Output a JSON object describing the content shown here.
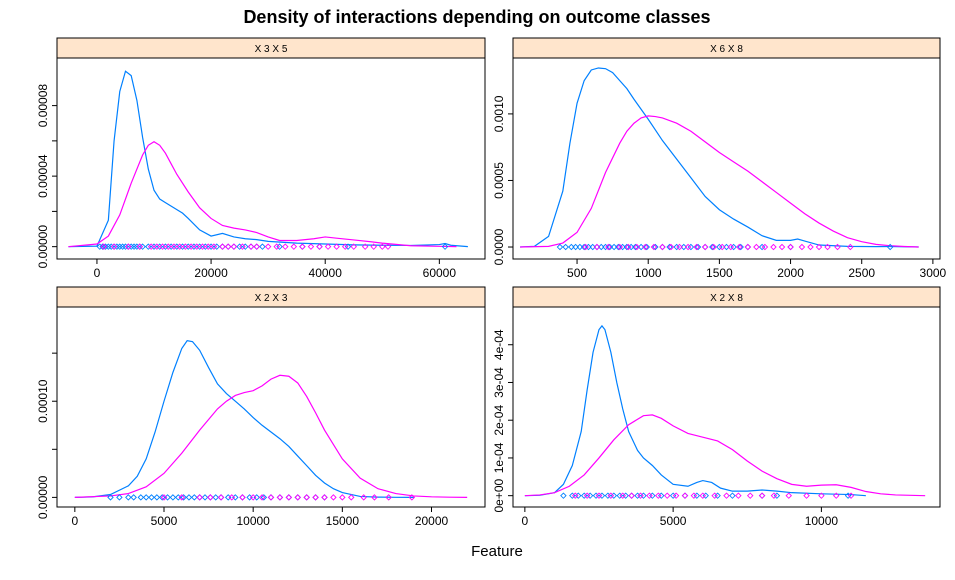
{
  "colors": {
    "strip_bg": "#ffe5cc",
    "series_1": "#0080ff",
    "series_2": "#ff00ff",
    "frame": "#000000"
  },
  "chart_data": {
    "type": "line",
    "title": "Density of interactions depending on outcome classes",
    "xlabel": "Feature",
    "ylabel": "",
    "layout": "2x2 lattice",
    "grid": false,
    "legend": "none",
    "series_names": [],
    "panels": [
      {
        "strip": "X 3 X 5",
        "xlim": [
          -7000,
          68000
        ],
        "ylim": [
          -7e-06,
          0.000107
        ],
        "x_ticks": [
          0,
          20000,
          40000,
          60000
        ],
        "x_tick_labels": [
          "0",
          "20000",
          "40000",
          "60000"
        ],
        "y_ticks": [
          0,
          4e-05,
          8e-05
        ],
        "y_tick_labels": [
          "0.00000",
          "0.00004",
          "0.00008"
        ],
        "y_minor_ticks": [
          2e-05,
          6e-05
        ],
        "x_ticks_side": "bottom",
        "y_ticks_side": "left",
        "series": [
          {
            "x": [
              -5000,
              0,
              2000,
              3000,
              4000,
              5000,
              6000,
              7000,
              8000,
              9000,
              10000,
              11000,
              12000,
              13000,
              14000,
              15000,
              16000,
              18000,
              20000,
              22000,
              24000,
              26000,
              28000,
              30000,
              35000,
              40000,
              45000,
              50000,
              55000,
              60000,
              61000,
              62000,
              65000
            ],
            "y": [
              0,
              3e-07,
              1.5e-05,
              6e-05,
              8.8e-05,
              9.95e-05,
              9.7e-05,
              8.3e-05,
              6.2e-05,
              4.4e-05,
              3.2e-05,
              2.7e-05,
              2.5e-05,
              2.3e-05,
              2.1e-05,
              1.9e-05,
              1.6e-05,
              9.5e-06,
              6e-06,
              7.5e-06,
              5.5e-06,
              4.5e-06,
              4e-06,
              3e-06,
              2e-06,
              1.5e-06,
              1e-06,
              8e-07,
              7e-07,
              1.2e-06,
              1.8e-06,
              8e-07,
              0
            ]
          },
          {
            "x": [
              -5000,
              0,
              2000,
              4000,
              6000,
              8000,
              9000,
              10000,
              11000,
              12000,
              13000,
              14000,
              16000,
              18000,
              20000,
              22000,
              24000,
              26000,
              28000,
              30000,
              32000,
              35000,
              38000,
              40000,
              42000,
              45000,
              48000,
              50000,
              55000,
              60000,
              63000
            ],
            "y": [
              0,
              1.5e-06,
              6e-06,
              1.8e-05,
              3.6e-05,
              5.2e-05,
              5.75e-05,
              5.95e-05,
              5.75e-05,
              5.3e-05,
              4.7e-05,
              4.1e-05,
              3.1e-05,
              2.2e-05,
              1.6e-05,
              1.2e-05,
              1.05e-05,
              9.5e-06,
              8e-06,
              5.5e-06,
              3.5e-06,
              3.5e-06,
              4.5e-06,
              5.5e-06,
              4.8e-06,
              3.8e-06,
              2.8e-06,
              2e-06,
              5e-07,
              2e-07,
              0
            ]
          }
        ],
        "rug": [
          [
            500,
            1000,
            1500,
            2000,
            2500,
            3000,
            3500,
            4000,
            4500,
            5000,
            5500,
            6000,
            6500,
            7000,
            7500,
            8000,
            9000,
            10000,
            11000,
            12000,
            13000,
            14000,
            15000,
            16000,
            17000,
            18000,
            19000,
            20000,
            21000,
            22000,
            23000,
            24000,
            25000,
            26000,
            27000,
            28000,
            29000,
            32000,
            36000,
            39000,
            44000,
            61000
          ],
          [
            1200,
            3000,
            5500,
            7500,
            9500,
            10500,
            11500,
            12500,
            13500,
            14500,
            15500,
            16500,
            17500,
            18500,
            19500,
            20500,
            22000,
            23000,
            24000,
            25500,
            27000,
            28000,
            30000,
            31500,
            33000,
            34500,
            36000,
            37500,
            39000,
            40500,
            42000,
            43500,
            45000,
            47000,
            48500,
            50000,
            51000
          ]
        ]
      },
      {
        "strip": "X 6 X 8",
        "xlim": [
          50,
          3050
        ],
        "ylim": [
          -9e-05,
          0.00142
        ],
        "x_ticks": [
          500,
          1000,
          1500,
          2000,
          2500,
          3000
        ],
        "x_tick_labels": [
          "500",
          "1000",
          "1500",
          "2000",
          "2500",
          "3000"
        ],
        "y_ticks": [
          0,
          0.0005,
          0.001
        ],
        "y_tick_labels": [
          "0.0000",
          "0.0005",
          "0.0010"
        ],
        "y_minor_ticks": [],
        "x_ticks_side": "bottom",
        "y_ticks_side": "left",
        "series": [
          {
            "x": [
              100,
              200,
              300,
              400,
              450,
              500,
              550,
              600,
              650,
              700,
              750,
              800,
              850,
              900,
              1000,
              1100,
              1200,
              1300,
              1400,
              1500,
              1600,
              1700,
              1800,
              1900,
              2000,
              2050,
              2100,
              2200,
              2400,
              2600,
              2700,
              2800,
              2900
            ],
            "y": [
              0,
              5e-06,
              8e-05,
              0.00042,
              0.00078,
              0.00108,
              0.00125,
              0.00133,
              0.001345,
              0.00134,
              0.00131,
              0.00125,
              0.00119,
              0.00111,
              0.00096,
              0.0008,
              0.00066,
              0.00052,
              0.00038,
              0.00028,
              0.00021,
              0.00015,
              8.5e-05,
              5e-05,
              5e-05,
              6e-05,
              4.5e-05,
              1.5e-05,
              5e-06,
              3e-06,
              4e-06,
              2e-06,
              0
            ]
          },
          {
            "x": [
              100,
              300,
              400,
              500,
              600,
              700,
              800,
              850,
              900,
              950,
              1000,
              1050,
              1100,
              1200,
              1300,
              1400,
              1500,
              1600,
              1700,
              1800,
              1900,
              2000,
              2100,
              2200,
              2300,
              2400,
              2500,
              2600,
              2700,
              2800,
              2900
            ],
            "y": [
              0,
              5e-06,
              3e-05,
              0.00011,
              0.00029,
              0.00056,
              0.00078,
              0.00087,
              0.00093,
              0.00097,
              0.000985,
              0.00098,
              0.00097,
              0.00093,
              0.00087,
              0.00079,
              0.00071,
              0.00064,
              0.00057,
              0.00049,
              0.00041,
              0.00033,
              0.00025,
              0.00018,
              0.00012,
              7e-05,
              4e-05,
              2e-05,
              1e-05,
              4e-06,
              0
            ]
          }
        ],
        "rug": [
          [
            380,
            420,
            460,
            490,
            520,
            550,
            580,
            610,
            640,
            670,
            700,
            730,
            760,
            790,
            820,
            850,
            880,
            910,
            950,
            990,
            1050,
            1100,
            1150,
            1200,
            1250,
            1300,
            1350,
            1400,
            1450,
            1500,
            1550,
            1600,
            1650,
            1700,
            1800,
            2000,
            2700
          ],
          [
            560,
            640,
            720,
            800,
            860,
            920,
            980,
            1040,
            1100,
            1160,
            1220,
            1280,
            1340,
            1400,
            1460,
            1520,
            1580,
            1640,
            1700,
            1760,
            1820,
            1880,
            1940,
            2000,
            2080,
            2140,
            2200,
            2260,
            2330,
            2420
          ]
        ]
      },
      {
        "strip": "X 2 X 3",
        "xlim": [
          -1000,
          23000
        ],
        "ylim": [
          -1e-05,
          0.000198
        ],
        "x_ticks": [
          0,
          5000,
          10000,
          15000,
          20000
        ],
        "x_tick_labels": [
          "0",
          "5000",
          "10000",
          "15000",
          "20000"
        ],
        "y_ticks": [
          0,
          0.0001
        ],
        "y_tick_labels": [
          "0.00000",
          "0.00010"
        ],
        "y_minor_ticks": [
          5e-05,
          0.00015
        ],
        "x_ticks_side": "bottom",
        "y_ticks_side": "left",
        "series": [
          {
            "x": [
              0,
              1000,
              2000,
              3000,
              3500,
              4000,
              4500,
              5000,
              5500,
              6000,
              6300,
              6600,
              7000,
              7500,
              8000,
              8500,
              9000,
              9500,
              10000,
              10500,
              11000,
              11500,
              12000,
              12500,
              13000,
              13500,
              14000,
              14500,
              15000,
              16000,
              17000,
              18000,
              19000
            ],
            "y": [
              0,
              5e-07,
              3e-06,
              1.2e-05,
              2.2e-05,
              4e-05,
              6.8e-05,
              0.0001,
              0.00013,
              0.000155,
              0.000163,
              0.000162,
              0.000153,
              0.000135,
              0.000118,
              0.000108,
              0.0001,
              9.2e-05,
              8.3e-05,
              7.5e-05,
              6.8e-05,
              6.1e-05,
              5.3e-05,
              4.3e-05,
              3.3e-05,
              2.3e-05,
              1.5e-05,
              9e-06,
              5e-06,
              1e-06,
              3e-07,
              1e-07,
              0
            ]
          },
          {
            "x": [
              0,
              2000,
              3000,
              4000,
              5000,
              6000,
              7000,
              8000,
              8500,
              9000,
              9500,
              10000,
              10500,
              11000,
              11500,
              12000,
              12500,
              13000,
              13500,
              14000,
              15000,
              16000,
              17000,
              18000,
              19000,
              20000,
              21000,
              22000
            ],
            "y": [
              0,
              1.5e-06,
              4e-06,
              1.1e-05,
              2.5e-05,
              4.6e-05,
              7e-05,
              9.2e-05,
              0.0001,
              0.000106,
              0.000109,
              0.000111,
              0.000116,
              0.000123,
              0.000127,
              0.000126,
              0.000119,
              0.000105,
              8.8e-05,
              7e-05,
              4e-05,
              2e-05,
              9e-06,
              4e-06,
              1.5e-06,
              6e-07,
              2e-07,
              0
            ]
          }
        ],
        "rug": [
          [
            2000,
            2500,
            3000,
            3300,
            3700,
            4000,
            4300,
            4600,
            4900,
            5200,
            5500,
            5800,
            6100,
            6400,
            6700,
            7000,
            7300,
            7600,
            7900,
            8200,
            8600,
            9000,
            9400,
            9800,
            10200,
            10600,
            11000,
            11500,
            12000,
            12500,
            13000,
            13500,
            14000
          ],
          [
            5000,
            6000,
            7000,
            7600,
            8200,
            8800,
            9400,
            10000,
            10500,
            11000,
            11500,
            12000,
            12500,
            13000,
            13500,
            14000,
            14500,
            15000,
            15500,
            16200,
            16800,
            17600,
            18900
          ]
        ]
      },
      {
        "strip": "X 2 X 8",
        "xlim": [
          -400,
          14000
        ],
        "ylim": [
          -3e-05,
          0.0005
        ],
        "x_ticks": [
          0,
          5000,
          10000
        ],
        "x_tick_labels": [
          "0",
          "5000",
          "10000"
        ],
        "y_ticks": [
          0,
          0.0001,
          0.0002,
          0.0003,
          0.0004
        ],
        "y_tick_labels": [
          "0e+00",
          "1e-04",
          "2e-04",
          "3e-04",
          "4e-04"
        ],
        "y_minor_ticks": [],
        "x_ticks_side": "bottom",
        "y_ticks_side": "left",
        "series": [
          {
            "x": [
              0,
              500,
              1000,
              1300,
              1600,
              1900,
              2100,
              2300,
              2500,
              2600,
              2700,
              2900,
              3100,
              3300,
              3500,
              3800,
              4000,
              4300,
              4600,
              5000,
              5500,
              5800,
              6000,
              6300,
              6600,
              7000,
              7500,
              8000,
              8500,
              9000,
              10000,
              11000,
              11500
            ],
            "y": [
              0,
              1e-06,
              8e-06,
              3e-05,
              8e-05,
              0.00017,
              0.00028,
              0.00038,
              0.00044,
              0.00045,
              0.00044,
              0.00038,
              0.0003,
              0.00023,
              0.00017,
              0.00012,
              0.0001,
              8e-05,
              5.5e-05,
              3e-05,
              2.5e-05,
              3.5e-05,
              4e-05,
              3.5e-05,
              2e-05,
              1.2e-05,
              1.2e-05,
              1.5e-05,
              1.2e-05,
              8e-06,
              5e-06,
              3e-06,
              0
            ]
          },
          {
            "x": [
              0,
              500,
              1000,
              1500,
              2000,
              2500,
              3000,
              3500,
              4000,
              4300,
              4600,
              5000,
              5500,
              6000,
              6500,
              7000,
              7500,
              8000,
              8500,
              9000,
              9500,
              10000,
              10500,
              11000,
              11500,
              12000,
              12500,
              13000,
              13500
            ],
            "y": [
              0,
              2e-06,
              8e-06,
              2.5e-05,
              5.5e-05,
              0.0001,
              0.000148,
              0.000188,
              0.000212,
              0.000214,
              0.000205,
              0.000185,
              0.000165,
              0.000155,
              0.000145,
              0.000122,
              9.2e-05,
              6.5e-05,
              4.5e-05,
              3e-05,
              2.5e-05,
              2.8e-05,
              2.9e-05,
              2.2e-05,
              1.1e-05,
              5e-06,
              2e-06,
              1e-06,
              0
            ]
          }
        ],
        "rug": [
          [
            1300,
            1600,
            1800,
            2000,
            2200,
            2400,
            2600,
            2800,
            3000,
            3200,
            3400,
            3600,
            3800,
            4000,
            4300,
            4600,
            5000,
            5400,
            5800,
            6100,
            6500,
            7000,
            8000,
            8500,
            10900
          ],
          [
            1700,
            2100,
            2500,
            2900,
            3300,
            3600,
            3900,
            4200,
            4500,
            4800,
            5100,
            5400,
            5700,
            6000,
            6400,
            6800,
            7200,
            7600,
            8000,
            8400,
            8900,
            9500,
            10000,
            10500,
            11000
          ]
        ]
      }
    ]
  }
}
